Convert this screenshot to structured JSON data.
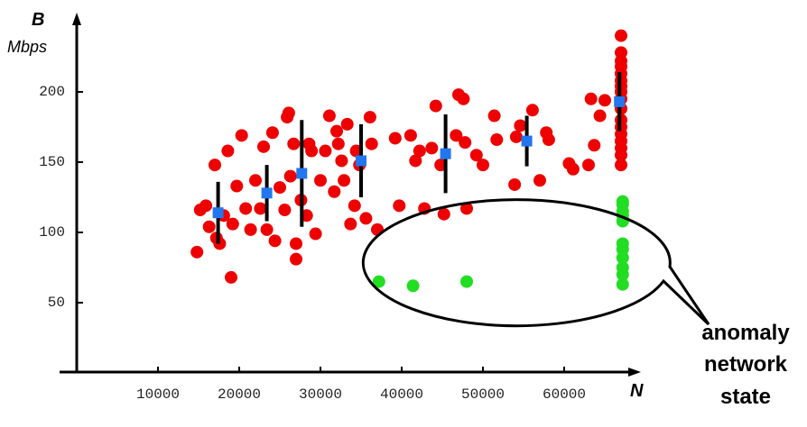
{
  "chart_data": {
    "type": "scatter",
    "y_label": "B",
    "y_unit": "Mbps",
    "x_label": "N",
    "annotation": [
      "anomaly",
      "network",
      "state"
    ],
    "xlim": [
      0,
      68000
    ],
    "ylim": [
      0,
      250
    ],
    "xticks": [
      10000,
      20000,
      30000,
      40000,
      50000,
      60000
    ],
    "yticks": [
      50,
      100,
      150,
      200
    ],
    "series": [
      {
        "color": "#ee0000",
        "marker": "circle",
        "x": [
          14800,
          15200,
          15900,
          16300,
          17000,
          17200,
          17600,
          18100,
          18600,
          19000,
          19200,
          19700,
          20300,
          20800,
          21400,
          22000,
          22600,
          23000,
          23400,
          24100,
          24400,
          25000,
          25600,
          25900,
          26100,
          26300,
          26700,
          27000,
          27000,
          27600,
          28300,
          28600,
          28900,
          29400,
          30000,
          30600,
          31100,
          31700,
          32000,
          32200,
          32600,
          32900,
          33300,
          33700,
          34200,
          34400,
          34800,
          35600,
          36100,
          36300,
          37000,
          39200,
          39700,
          41100,
          41700,
          42200,
          42800,
          43700,
          44200,
          44800,
          45200,
          46700,
          47000,
          47600,
          47800,
          48000,
          49200,
          50000,
          51400,
          51700,
          53900,
          54100,
          54600,
          56100,
          57000,
          57800,
          58100,
          60600,
          61100,
          63000,
          63300,
          63700,
          64400,
          65000,
          67000,
          67000,
          67000,
          67000,
          67000,
          67000,
          67000,
          67000,
          67000,
          67000,
          67000,
          67000,
          67000,
          67000,
          67000,
          67000,
          67000
        ],
        "values": [
          86,
          116,
          119,
          104,
          148,
          96,
          92,
          112,
          158,
          68,
          106,
          133,
          169,
          117,
          102,
          137,
          117,
          161,
          102,
          171,
          94,
          132,
          116,
          182,
          185,
          140,
          163,
          92,
          81,
          123,
          112,
          163,
          158,
          99,
          137,
          158,
          183,
          129,
          172,
          163,
          151,
          137,
          177,
          106,
          119,
          158,
          148,
          110,
          182,
          163,
          102,
          167,
          119,
          169,
          151,
          158,
          117,
          160,
          190,
          148,
          113,
          169,
          198,
          195,
          164,
          117,
          155,
          148,
          183,
          166,
          134,
          168,
          176,
          187,
          137,
          171,
          166,
          149,
          145,
          148,
          195,
          162,
          183,
          194,
          240,
          228,
          222,
          218,
          213,
          208,
          204,
          200,
          195,
          188,
          180,
          175,
          170,
          165,
          160,
          155,
          148
        ]
      },
      {
        "color": "#22dd22",
        "marker": "circle",
        "x": [
          37200,
          41400,
          48000,
          67200,
          67200,
          67200,
          67200,
          67200,
          67200,
          67200,
          67200,
          67200,
          67200,
          67200
        ],
        "values": [
          65,
          62,
          65,
          122,
          120,
          115,
          112,
          108,
          92,
          88,
          82,
          75,
          70,
          63
        ]
      },
      {
        "color": "#2277ee",
        "marker": "square",
        "error_color": "#000000",
        "x": [
          17400,
          23400,
          27700,
          35000,
          45400,
          55400,
          66800
        ],
        "values": [
          114,
          128,
          142,
          151,
          156,
          165,
          193
        ],
        "errors": [
          22,
          20,
          38,
          26,
          28,
          18,
          21
        ]
      }
    ]
  }
}
